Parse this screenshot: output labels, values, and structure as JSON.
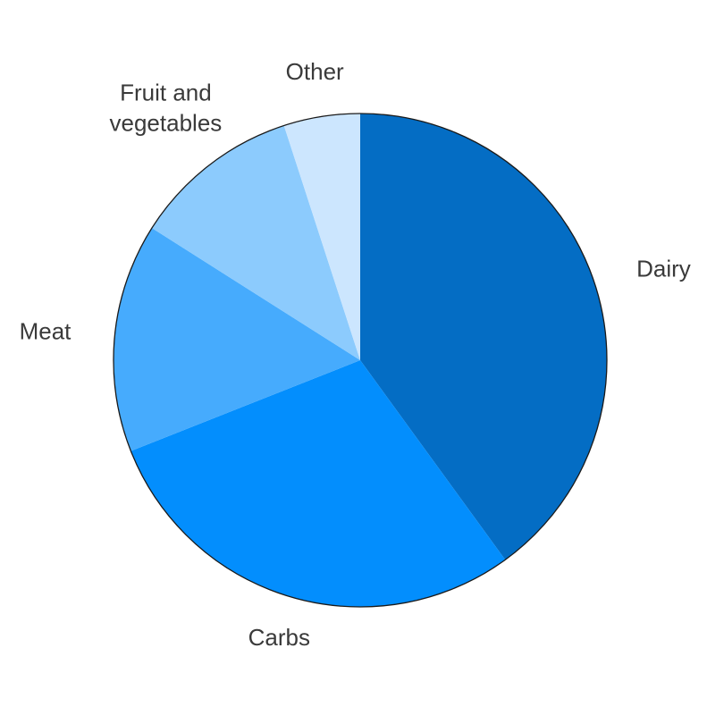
{
  "chart_data": {
    "type": "pie",
    "title": "",
    "start": "top",
    "direction": "clockwise",
    "slices": [
      {
        "label": "Dairy",
        "value": 40,
        "color": "#046dc4"
      },
      {
        "label": "Carbs",
        "value": 29,
        "color": "#038efd"
      },
      {
        "label": "Meat",
        "value": 15,
        "color": "#46abfd"
      },
      {
        "label": "Fruit and vegetables",
        "value": 11,
        "color": "#8ccbfd"
      },
      {
        "label": "Other",
        "value": 5,
        "color": "#cce6fe"
      }
    ]
  }
}
